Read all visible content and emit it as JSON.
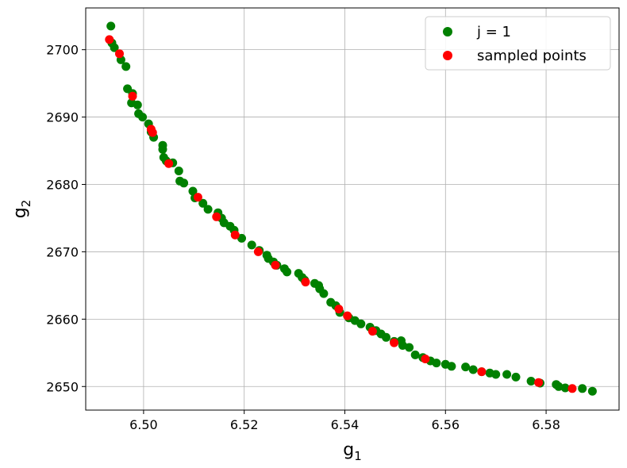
{
  "chart_data": {
    "type": "scatter",
    "xlabel": "g",
    "xlabel_sub": "1",
    "ylabel": "g",
    "ylabel_sub": "2",
    "xlim": [
      6.4885,
      6.5945
    ],
    "ylim": [
      2646.5,
      2706.2
    ],
    "xticks": [
      6.5,
      6.52,
      6.54,
      6.56,
      6.58
    ],
    "xtick_labels": [
      "6.50",
      "6.52",
      "6.54",
      "6.56",
      "6.58"
    ],
    "yticks": [
      2650,
      2660,
      2670,
      2680,
      2690,
      2700
    ],
    "ytick_labels": [
      "2650",
      "2660",
      "2670",
      "2680",
      "2690",
      "2700"
    ],
    "grid": true,
    "legend_position": "top-right",
    "series": [
      {
        "name": "j = 1",
        "color": "#008000",
        "points": [
          [
            6.4935,
            2703.5
          ],
          [
            6.4937,
            2701.0
          ],
          [
            6.4942,
            2700.3
          ],
          [
            6.4955,
            2698.5
          ],
          [
            6.4965,
            2697.5
          ],
          [
            6.4968,
            2694.2
          ],
          [
            6.4978,
            2693.5
          ],
          [
            6.4976,
            2692.1
          ],
          [
            6.4988,
            2691.8
          ],
          [
            6.499,
            2690.5
          ],
          [
            6.4998,
            2690.0
          ],
          [
            6.501,
            2689.0
          ],
          [
            6.5015,
            2687.8
          ],
          [
            6.502,
            2687.0
          ],
          [
            6.5038,
            2685.8
          ],
          [
            6.5038,
            2685.2
          ],
          [
            6.504,
            2684.0
          ],
          [
            6.5045,
            2683.5
          ],
          [
            6.5058,
            2683.2
          ],
          [
            6.507,
            2682.0
          ],
          [
            6.5072,
            2680.5
          ],
          [
            6.508,
            2680.2
          ],
          [
            6.5098,
            2679.0
          ],
          [
            6.5102,
            2678.0
          ],
          [
            6.5118,
            2677.2
          ],
          [
            6.5128,
            2676.3
          ],
          [
            6.5148,
            2675.8
          ],
          [
            6.5155,
            2675.0
          ],
          [
            6.516,
            2674.3
          ],
          [
            6.5172,
            2673.8
          ],
          [
            6.518,
            2673.2
          ],
          [
            6.5195,
            2672.0
          ],
          [
            6.5215,
            2671.0
          ],
          [
            6.523,
            2670.2
          ],
          [
            6.5245,
            2669.5
          ],
          [
            6.5248,
            2669.0
          ],
          [
            6.5258,
            2668.5
          ],
          [
            6.5265,
            2668.0
          ],
          [
            6.528,
            2667.5
          ],
          [
            6.5285,
            2667.0
          ],
          [
            6.5308,
            2666.8
          ],
          [
            6.5315,
            2666.2
          ],
          [
            6.532,
            2665.8
          ],
          [
            6.534,
            2665.3
          ],
          [
            6.5348,
            2665.0
          ],
          [
            6.535,
            2664.5
          ],
          [
            6.5358,
            2663.8
          ],
          [
            6.5372,
            2662.5
          ],
          [
            6.5382,
            2662.0
          ],
          [
            6.539,
            2661.0
          ],
          [
            6.5408,
            2660.2
          ],
          [
            6.542,
            2659.8
          ],
          [
            6.5432,
            2659.3
          ],
          [
            6.545,
            2658.8
          ],
          [
            6.5462,
            2658.3
          ],
          [
            6.5472,
            2657.8
          ],
          [
            6.5482,
            2657.3
          ],
          [
            6.5498,
            2656.7
          ],
          [
            6.5512,
            2656.8
          ],
          [
            6.5515,
            2656.1
          ],
          [
            6.5528,
            2655.8
          ],
          [
            6.554,
            2654.7
          ],
          [
            6.5555,
            2654.3
          ],
          [
            6.557,
            2653.8
          ],
          [
            6.5582,
            2653.5
          ],
          [
            6.56,
            2653.3
          ],
          [
            6.5612,
            2653.0
          ],
          [
            6.564,
            2652.9
          ],
          [
            6.5655,
            2652.5
          ],
          [
            6.5672,
            2652.2
          ],
          [
            6.5688,
            2652.0
          ],
          [
            6.57,
            2651.8
          ],
          [
            6.5722,
            2651.8
          ],
          [
            6.574,
            2651.4
          ],
          [
            6.577,
            2650.8
          ],
          [
            6.5788,
            2650.5
          ],
          [
            6.582,
            2650.3
          ],
          [
            6.5825,
            2650.0
          ],
          [
            6.5838,
            2649.8
          ],
          [
            6.5872,
            2649.7
          ],
          [
            6.5892,
            2649.3
          ]
        ]
      },
      {
        "name": "sampled points",
        "color": "#ff0000",
        "points": [
          [
            6.4932,
            2701.5
          ],
          [
            6.4952,
            2699.4
          ],
          [
            6.4978,
            2693.1
          ],
          [
            6.5015,
            2688.2
          ],
          [
            6.5018,
            2687.7
          ],
          [
            6.505,
            2683.1
          ],
          [
            6.5108,
            2678.1
          ],
          [
            6.5145,
            2675.2
          ],
          [
            6.5182,
            2672.5
          ],
          [
            6.5228,
            2670.0
          ],
          [
            6.5262,
            2668.0
          ],
          [
            6.5322,
            2665.5
          ],
          [
            6.5388,
            2661.5
          ],
          [
            6.5405,
            2660.5
          ],
          [
            6.5455,
            2658.2
          ],
          [
            6.5498,
            2656.5
          ],
          [
            6.556,
            2654.1
          ],
          [
            6.5672,
            2652.2
          ],
          [
            6.5785,
            2650.6
          ],
          [
            6.5852,
            2649.7
          ]
        ]
      }
    ]
  }
}
